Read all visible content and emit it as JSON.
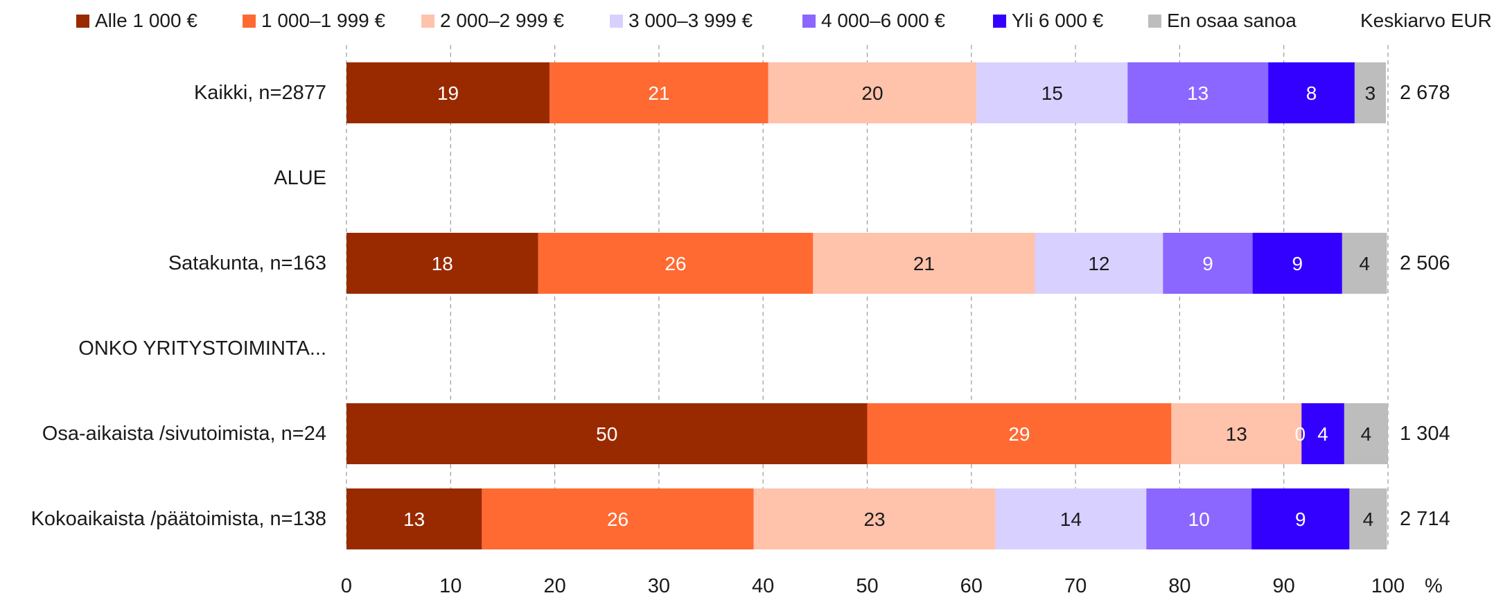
{
  "chart_data": {
    "type": "bar",
    "orientation": "horizontal",
    "stacked": true,
    "x_unit": "%",
    "xlim": [
      0,
      100
    ],
    "x_ticks": [
      "0",
      "10",
      "20",
      "30",
      "40",
      "50",
      "60",
      "70",
      "80",
      "90",
      "100"
    ],
    "grid": "vertical dashed",
    "legend_position": "top",
    "avg_header": "Keskiarvo EUR",
    "series": [
      {
        "name": "Alle 1 000 €",
        "color": "#992a00"
      },
      {
        "name": "1 000–1 999 €",
        "color": "#ff6a33"
      },
      {
        "name": "2 000–2 999 €",
        "color": "#ffc2ab"
      },
      {
        "name": "3 000–3 999 €",
        "color": "#d8d0ff"
      },
      {
        "name": "4 000–6 000 €",
        "color": "#8b66ff"
      },
      {
        "name": "Yli 6 000 €",
        "color": "#3300ff"
      },
      {
        "name": "En osaa sanoa",
        "color": "#bdbdbd"
      }
    ],
    "rows": [
      {
        "label": "Kaikki, n=2877",
        "values": [
          19.5,
          21,
          20,
          14.5,
          13.5,
          8.3,
          3
        ],
        "data_labels": [
          "19",
          "21",
          "20",
          "15",
          "13",
          "8",
          "3"
        ],
        "avg": "2 678"
      },
      {
        "label": "ALUE",
        "header": true
      },
      {
        "label": "Satakunta, n=163",
        "values": [
          18.4,
          26.4,
          21.3,
          12.3,
          8.6,
          8.6,
          4.3
        ],
        "data_labels": [
          "18",
          "26",
          "21",
          "12",
          "9",
          "9",
          "4"
        ],
        "avg": "2 506"
      },
      {
        "label": "ONKO YRITYSTOIMINTA...",
        "header": true
      },
      {
        "label": "Osa-aikaista /sivutoimista, n=24",
        "values": [
          50,
          29.2,
          12.5,
          0,
          0,
          4.1,
          4.2
        ],
        "data_labels": [
          "50",
          "29",
          "13",
          "0",
          "",
          "4",
          "4"
        ],
        "avg": "1 304"
      },
      {
        "label": "Kokoaikaista /päätoimista, n=138",
        "values": [
          13,
          26.1,
          23.2,
          14.5,
          10.1,
          9.4,
          3.6
        ],
        "data_labels": [
          "13",
          "26",
          "23",
          "14",
          "10",
          "9",
          "4"
        ],
        "avg": "2 714"
      }
    ]
  }
}
